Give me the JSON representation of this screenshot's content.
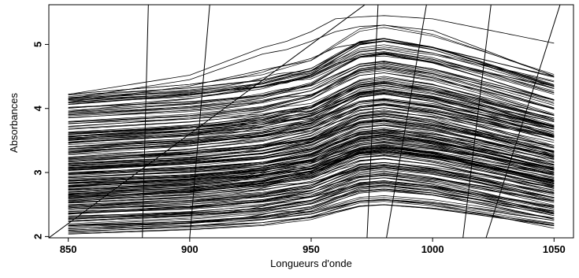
{
  "chart_data": {
    "type": "line",
    "title": "",
    "xlabel": "Longueurs d'onde",
    "ylabel": "Absorbances",
    "xlim": [
      842,
      1058
    ],
    "ylim": [
      1.98,
      5.62
    ],
    "x_ticks": [
      850,
      900,
      950,
      1000,
      1050
    ],
    "y_ticks": [
      2,
      3,
      4,
      5
    ],
    "x_tick_labels": [
      "850",
      "900",
      "950",
      "1000",
      "1050"
    ],
    "y_tick_labels": [
      "2",
      "3",
      "4",
      "5"
    ],
    "grid": false,
    "legend": "none",
    "line_color": "#000000",
    "x_range": [
      850,
      1050
    ],
    "curve_count": 215,
    "baseline_levels": [
      2.03,
      2.15,
      2.25,
      2.35,
      2.45,
      2.55,
      2.62,
      2.7,
      2.78,
      2.85,
      2.92,
      3.0,
      3.08,
      3.15,
      3.25,
      3.35,
      3.45,
      3.55,
      3.62,
      3.8,
      3.95,
      4.12,
      4.22
    ],
    "spectrum_shape": {
      "x": [
        850,
        900,
        930,
        950,
        960,
        970,
        980,
        1000,
        1020,
        1050
      ],
      "relative_absorbance": [
        0.0,
        0.1,
        0.2,
        0.35,
        0.52,
        0.68,
        0.72,
        0.62,
        0.45,
        0.18
      ]
    },
    "highlighted_spectra": [
      {
        "name": "",
        "x": [
          850,
          900,
          930,
          940,
          950,
          960,
          970,
          980,
          1000,
          1050
        ],
        "values": [
          4.22,
          4.52,
          4.95,
          5.05,
          5.2,
          5.4,
          5.43,
          5.45,
          5.4,
          5.02
        ]
      },
      {
        "name": "",
        "x": [
          850,
          900,
          930,
          940,
          950,
          960,
          970,
          980,
          1000,
          1050
        ],
        "values": [
          4.15,
          4.45,
          4.85,
          4.92,
          5.05,
          5.2,
          5.28,
          5.3,
          5.22,
          4.5
        ]
      },
      {
        "name": "",
        "x": [
          850,
          900,
          930,
          940,
          950,
          960,
          970,
          980,
          1000,
          1050
        ],
        "values": [
          4.1,
          4.35,
          4.6,
          4.68,
          4.78,
          4.95,
          5.02,
          5.05,
          4.95,
          4.5
        ]
      },
      {
        "name": "",
        "x": [
          850,
          900,
          930,
          940,
          950,
          960,
          970,
          980,
          1000,
          1050
        ],
        "values": [
          3.95,
          4.15,
          4.35,
          4.4,
          4.52,
          4.7,
          4.8,
          4.82,
          4.72,
          4.35
        ]
      }
    ],
    "reference_lines": [
      {
        "x": [
          883.5,
          880.5
        ],
        "y": [
          6.4,
          1.98
        ]
      },
      {
        "x": [
          910,
          900
        ],
        "y": [
          6.4,
          1.98
        ]
      },
      {
        "x": [
          973,
          978.5
        ],
        "y": [
          1.98,
          6.4
        ]
      },
      {
        "x": [
          1001,
          981
        ],
        "y": [
          6.4,
          1.98
        ]
      },
      {
        "x": [
          1012.5,
          1026.5
        ],
        "y": [
          1.98,
          6.4
        ]
      },
      {
        "x": [
          1022,
          1059
        ],
        "y": [
          1.98,
          6.4
        ]
      },
      {
        "x": [
          842,
          1000
        ],
        "y": [
          1.98,
          6.4
        ]
      }
    ]
  }
}
